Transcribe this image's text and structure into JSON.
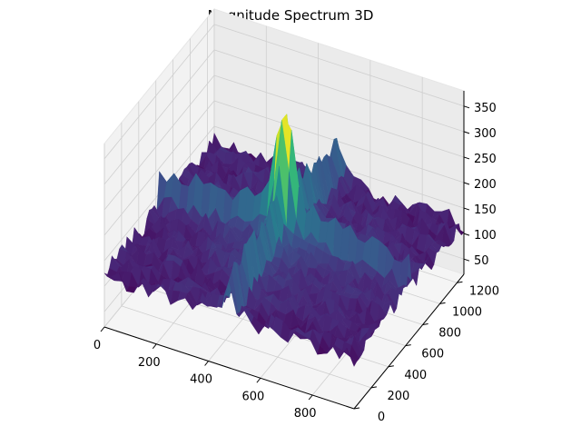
{
  "chart_data": {
    "type": "surface3d",
    "title": "Magnitude Spectrum 3D",
    "x_ticks": [
      "0",
      "200",
      "400",
      "600",
      "800"
    ],
    "y_ticks": [
      "0",
      "200",
      "400",
      "600",
      "800",
      "1000",
      "1200"
    ],
    "z_ticks": [
      "50",
      "100",
      "150",
      "200",
      "250",
      "300",
      "350"
    ],
    "x_range": [
      0,
      960
    ],
    "y_range": [
      0,
      1280
    ],
    "z_range": [
      20,
      380
    ],
    "colormap": "viridis",
    "grid": true,
    "surface": {
      "baseline_magnitude": 120,
      "noise_amplitude": 40,
      "peak_center": [
        480,
        640
      ],
      "peak_magnitude": 360,
      "cross_ridge_magnitude": 200
    }
  }
}
